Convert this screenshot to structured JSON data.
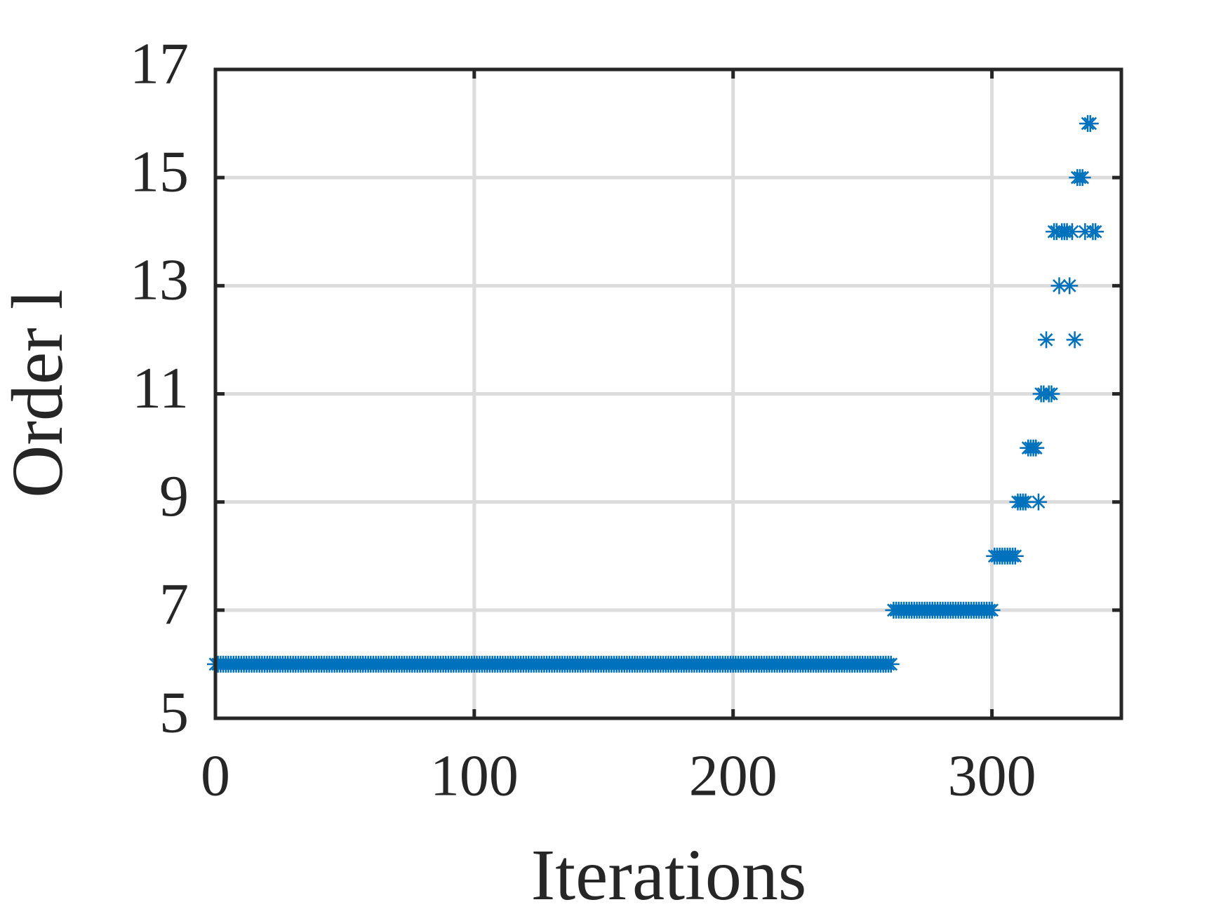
{
  "chart_data": {
    "type": "scatter",
    "xlabel": "Iterations",
    "ylabel": "Order l",
    "color": "#0072bd",
    "marker": "asterisk",
    "grid": true,
    "xlim": [
      0,
      350
    ],
    "xticks": [
      0,
      100,
      200,
      300
    ],
    "ylim": [
      5,
      17
    ],
    "yticks": [
      5,
      7,
      9,
      11,
      13,
      15,
      17
    ],
    "x": [
      0,
      1,
      2,
      3,
      4,
      5,
      6,
      7,
      8,
      9,
      10,
      11,
      12,
      13,
      14,
      15,
      16,
      17,
      18,
      19,
      20,
      21,
      22,
      23,
      24,
      25,
      26,
      27,
      28,
      29,
      30,
      31,
      32,
      33,
      34,
      35,
      36,
      37,
      38,
      39,
      40,
      41,
      42,
      43,
      44,
      45,
      46,
      47,
      48,
      49,
      50,
      51,
      52,
      53,
      54,
      55,
      56,
      57,
      58,
      59,
      60,
      61,
      62,
      63,
      64,
      65,
      66,
      67,
      68,
      69,
      70,
      71,
      72,
      73,
      74,
      75,
      76,
      77,
      78,
      79,
      80,
      81,
      82,
      83,
      84,
      85,
      86,
      87,
      88,
      89,
      90,
      91,
      92,
      93,
      94,
      95,
      96,
      97,
      98,
      99,
      100,
      101,
      102,
      103,
      104,
      105,
      106,
      107,
      108,
      109,
      110,
      111,
      112,
      113,
      114,
      115,
      116,
      117,
      118,
      119,
      120,
      121,
      122,
      123,
      124,
      125,
      126,
      127,
      128,
      129,
      130,
      131,
      132,
      133,
      134,
      135,
      136,
      137,
      138,
      139,
      140,
      141,
      142,
      143,
      144,
      145,
      146,
      147,
      148,
      149,
      150,
      151,
      152,
      153,
      154,
      155,
      156,
      157,
      158,
      159,
      160,
      161,
      162,
      163,
      164,
      165,
      166,
      167,
      168,
      169,
      170,
      171,
      172,
      173,
      174,
      175,
      176,
      177,
      178,
      179,
      180,
      181,
      182,
      183,
      184,
      185,
      186,
      187,
      188,
      189,
      190,
      191,
      192,
      193,
      194,
      195,
      196,
      197,
      198,
      199,
      200,
      201,
      202,
      203,
      204,
      205,
      206,
      207,
      208,
      209,
      210,
      211,
      212,
      213,
      214,
      215,
      216,
      217,
      218,
      219,
      220,
      221,
      222,
      223,
      224,
      225,
      226,
      227,
      228,
      229,
      230,
      231,
      232,
      233,
      234,
      235,
      236,
      237,
      238,
      239,
      240,
      241,
      242,
      243,
      244,
      245,
      246,
      247,
      248,
      249,
      250,
      251,
      252,
      253,
      254,
      255,
      256,
      257,
      258,
      259,
      260,
      261,
      262,
      263,
      264,
      265,
      266,
      267,
      268,
      269,
      270,
      271,
      272,
      273,
      274,
      275,
      276,
      277,
      278,
      279,
      280,
      281,
      282,
      283,
      284,
      285,
      286,
      287,
      288,
      289,
      290,
      291,
      292,
      293,
      294,
      295,
      296,
      297,
      298,
      299,
      300,
      301,
      302,
      303,
      304,
      305,
      306,
      307,
      308,
      309,
      310,
      311,
      312,
      313,
      314,
      315,
      316,
      317,
      318,
      319,
      320,
      321,
      322,
      323,
      324,
      325,
      326,
      327,
      328,
      329,
      330,
      331,
      332,
      333,
      334,
      335,
      336,
      337,
      338,
      339,
      340
    ],
    "values": [
      6,
      6,
      6,
      6,
      6,
      6,
      6,
      6,
      6,
      6,
      6,
      6,
      6,
      6,
      6,
      6,
      6,
      6,
      6,
      6,
      6,
      6,
      6,
      6,
      6,
      6,
      6,
      6,
      6,
      6,
      6,
      6,
      6,
      6,
      6,
      6,
      6,
      6,
      6,
      6,
      6,
      6,
      6,
      6,
      6,
      6,
      6,
      6,
      6,
      6,
      6,
      6,
      6,
      6,
      6,
      6,
      6,
      6,
      6,
      6,
      6,
      6,
      6,
      6,
      6,
      6,
      6,
      6,
      6,
      6,
      6,
      6,
      6,
      6,
      6,
      6,
      6,
      6,
      6,
      6,
      6,
      6,
      6,
      6,
      6,
      6,
      6,
      6,
      6,
      6,
      6,
      6,
      6,
      6,
      6,
      6,
      6,
      6,
      6,
      6,
      6,
      6,
      6,
      6,
      6,
      6,
      6,
      6,
      6,
      6,
      6,
      6,
      6,
      6,
      6,
      6,
      6,
      6,
      6,
      6,
      6,
      6,
      6,
      6,
      6,
      6,
      6,
      6,
      6,
      6,
      6,
      6,
      6,
      6,
      6,
      6,
      6,
      6,
      6,
      6,
      6,
      6,
      6,
      6,
      6,
      6,
      6,
      6,
      6,
      6,
      6,
      6,
      6,
      6,
      6,
      6,
      6,
      6,
      6,
      6,
      6,
      6,
      6,
      6,
      6,
      6,
      6,
      6,
      6,
      6,
      6,
      6,
      6,
      6,
      6,
      6,
      6,
      6,
      6,
      6,
      6,
      6,
      6,
      6,
      6,
      6,
      6,
      6,
      6,
      6,
      6,
      6,
      6,
      6,
      6,
      6,
      6,
      6,
      6,
      6,
      6,
      6,
      6,
      6,
      6,
      6,
      6,
      6,
      6,
      6,
      6,
      6,
      6,
      6,
      6,
      6,
      6,
      6,
      6,
      6,
      6,
      6,
      6,
      6,
      6,
      6,
      6,
      6,
      6,
      6,
      6,
      6,
      6,
      6,
      6,
      6,
      6,
      6,
      6,
      6,
      6,
      6,
      6,
      6,
      6,
      6,
      6,
      6,
      6,
      6,
      6,
      6,
      6,
      6,
      6,
      6,
      6,
      6,
      6,
      6,
      6,
      6,
      7,
      7,
      7,
      7,
      7,
      7,
      7,
      7,
      7,
      7,
      7,
      7,
      7,
      7,
      7,
      7,
      7,
      7,
      7,
      7,
      7,
      7,
      7,
      7,
      7,
      7,
      7,
      7,
      7,
      7,
      7,
      7,
      7,
      7,
      7,
      7,
      7,
      7,
      7,
      8,
      8,
      8,
      8,
      8,
      8,
      8,
      8,
      8,
      9,
      9,
      9,
      9,
      10,
      10,
      10,
      10,
      9,
      11,
      11,
      12,
      11,
      11,
      14,
      14,
      13,
      14,
      14,
      14,
      13,
      14,
      12,
      15,
      15,
      15,
      14,
      16,
      16,
      14,
      14
    ]
  }
}
